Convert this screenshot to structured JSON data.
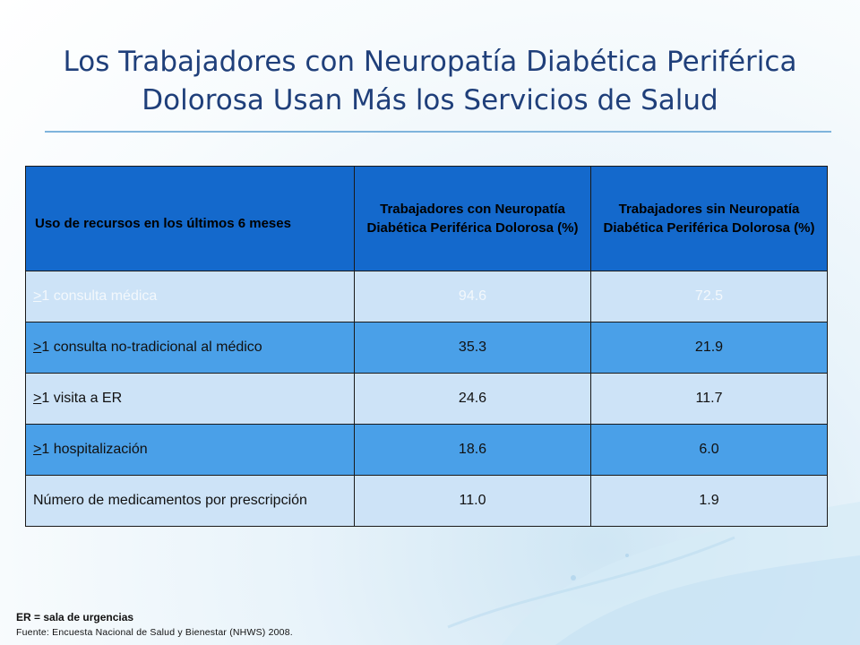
{
  "title": {
    "line1": "Los Trabajadores con Neuropatía Diabética Periférica",
    "line2": "Dolorosa Usan Más los Servicios de Salud"
  },
  "table": {
    "headers": [
      "Uso de recursos en los últimos 6 meses",
      "Trabajadores con Neuropatía Diabética Periférica Dolorosa (%)",
      "Trabajadores sin Neuropatía Diabética Periférica Dolorosa (%)"
    ],
    "rows": [
      {
        "prefix": ">",
        "label": "1 consulta médica",
        "con": "94.6",
        "sin": "72.5"
      },
      {
        "prefix": ">",
        "label": "1 consulta no-tradicional al médico",
        "con": "35.3",
        "sin": "21.9"
      },
      {
        "prefix": ">",
        "label": "1 visita a ER",
        "con": "24.6",
        "sin": "11.7"
      },
      {
        "prefix": ">",
        "label": "1 hospitalización",
        "con": "18.6",
        "sin": "6.0"
      },
      {
        "prefix": "",
        "label": "Número de medicamentos por prescripción",
        "con": "11.0",
        "sin": "1.9"
      }
    ]
  },
  "footnote": "ER = sala de urgencias",
  "source": "Fuente: Encuesta Nacional de Salud y Bienestar (NHWS) 2008."
}
